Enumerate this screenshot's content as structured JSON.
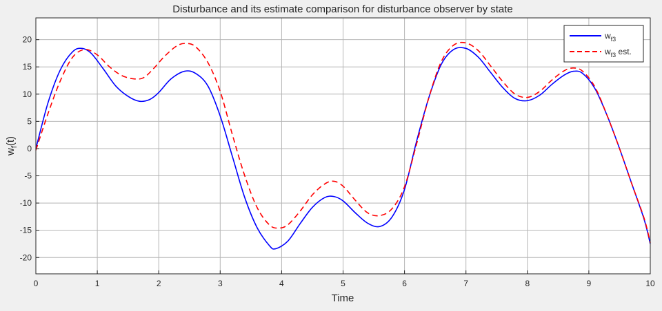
{
  "chart_data": {
    "type": "line",
    "title": "Disturbance and its estimate comparison for disturbance observer by state",
    "xlabel": "Time",
    "ylabel_main": "w",
    "ylabel_sub": "f",
    "ylabel_tail": "(t)",
    "xlim": [
      0,
      10
    ],
    "ylim": [
      -23,
      24
    ],
    "xticks": [
      0,
      1,
      2,
      3,
      4,
      5,
      6,
      7,
      8,
      9,
      10
    ],
    "yticks": [
      -20,
      -15,
      -10,
      -5,
      0,
      5,
      10,
      15,
      20
    ],
    "grid": true,
    "legend_position": "top-right",
    "series": [
      {
        "legend_main": "w",
        "legend_sub": "f3",
        "legend_tail": "",
        "color": "#0000ff",
        "style": "solid",
        "x": [
          0,
          0.2,
          0.4,
          0.6,
          0.75,
          0.9,
          1.1,
          1.3,
          1.5,
          1.68,
          1.85,
          2.0,
          2.2,
          2.42,
          2.6,
          2.8,
          3.0,
          3.2,
          3.4,
          3.6,
          3.8,
          3.9,
          4.1,
          4.3,
          4.5,
          4.7,
          4.85,
          5.0,
          5.2,
          5.4,
          5.6,
          5.8,
          6.0,
          6.2,
          6.4,
          6.6,
          6.8,
          7.0,
          7.2,
          7.4,
          7.6,
          7.8,
          8.0,
          8.2,
          8.4,
          8.6,
          8.75,
          8.9,
          9.1,
          9.3,
          9.5,
          9.7,
          9.9,
          10.0
        ],
        "y": [
          0,
          8.5,
          14.5,
          17.8,
          18.4,
          17.5,
          14.6,
          11.5,
          9.6,
          8.7,
          9.0,
          10.3,
          12.8,
          14.2,
          13.8,
          11.5,
          6.0,
          -1.5,
          -9.0,
          -14.5,
          -17.8,
          -18.4,
          -17.0,
          -13.8,
          -10.8,
          -9.0,
          -8.8,
          -9.6,
          -11.8,
          -13.7,
          -14.3,
          -12.5,
          -7.5,
          1.5,
          9.5,
          15.5,
          18.2,
          18.4,
          16.8,
          14.0,
          11.2,
          9.2,
          8.8,
          9.8,
          11.8,
          13.5,
          14.2,
          13.8,
          11.0,
          6.0,
          0.0,
          -6.5,
          -13.0,
          -17.5
        ]
      },
      {
        "legend_main": "w",
        "legend_sub": "f3",
        "legend_tail": " est.",
        "color": "#ff0000",
        "style": "dashed",
        "x": [
          0,
          0.2,
          0.4,
          0.6,
          0.8,
          1.0,
          1.2,
          1.4,
          1.6,
          1.75,
          1.9,
          2.1,
          2.3,
          2.45,
          2.6,
          2.8,
          3.0,
          3.2,
          3.4,
          3.6,
          3.8,
          3.95,
          4.1,
          4.3,
          4.5,
          4.7,
          4.85,
          5.0,
          5.2,
          5.4,
          5.6,
          5.8,
          6.0,
          6.2,
          6.4,
          6.6,
          6.8,
          7.0,
          7.2,
          7.4,
          7.6,
          7.8,
          8.0,
          8.2,
          8.4,
          8.6,
          8.75,
          8.9,
          9.1,
          9.3,
          9.5,
          9.7,
          9.9,
          10.0
        ],
        "y": [
          -0.3,
          6.5,
          12.5,
          16.8,
          18.2,
          17.2,
          15.0,
          13.4,
          12.8,
          13.0,
          14.5,
          17.0,
          18.9,
          19.3,
          18.7,
          15.8,
          10.5,
          2.5,
          -5.0,
          -10.8,
          -14.0,
          -14.6,
          -14.0,
          -11.5,
          -8.5,
          -6.5,
          -6.0,
          -6.9,
          -9.5,
          -11.8,
          -12.3,
          -11.0,
          -7.0,
          1.0,
          9.5,
          16.0,
          19.0,
          19.4,
          18.0,
          15.2,
          12.3,
          10.0,
          9.4,
          10.5,
          12.6,
          14.3,
          14.8,
          14.2,
          11.3,
          6.0,
          0.0,
          -6.5,
          -12.8,
          -17.3
        ]
      }
    ]
  }
}
